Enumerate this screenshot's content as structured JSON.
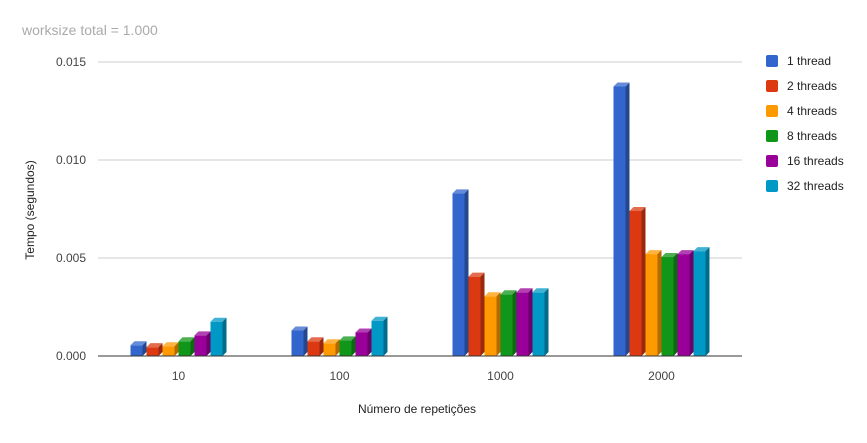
{
  "chart_data": {
    "type": "bar",
    "title": "worksize total = 1.000",
    "xlabel": "Número de repetições",
    "ylabel": "Tempo (segundos)",
    "categories": [
      "10",
      "100",
      "1000",
      "2000"
    ],
    "ylim": [
      0,
      0.015
    ],
    "yticks": [
      "0.000",
      "0.005",
      "0.010",
      "0.015"
    ],
    "grid": true,
    "legend_position": "right",
    "bar_style": "3d",
    "series": [
      {
        "name": "1 thread",
        "color": "#3366cc",
        "values": [
          0.00055,
          0.0013,
          0.0083,
          0.01375
        ]
      },
      {
        "name": "2 threads",
        "color": "#dc3912",
        "values": [
          0.00045,
          0.00075,
          0.00405,
          0.0074
        ]
      },
      {
        "name": "4 threads",
        "color": "#ff9900",
        "values": [
          0.0005,
          0.00065,
          0.00305,
          0.0052
        ]
      },
      {
        "name": "8 threads",
        "color": "#109618",
        "values": [
          0.00075,
          0.0008,
          0.00315,
          0.00505
        ]
      },
      {
        "name": "16 threads",
        "color": "#990099",
        "values": [
          0.00105,
          0.0012,
          0.00325,
          0.0052
        ]
      },
      {
        "name": "32 threads",
        "color": "#0099c6",
        "values": [
          0.00175,
          0.0018,
          0.00325,
          0.00535
        ]
      }
    ]
  }
}
